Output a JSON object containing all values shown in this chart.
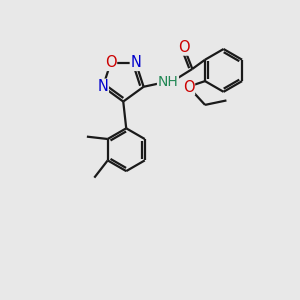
{
  "bg_color": "#e8e8e8",
  "atom_colors": {
    "C": "#000000",
    "N": "#0000cc",
    "O": "#cc0000",
    "NH": "#228855"
  },
  "bond_color": "#1a1a1a",
  "bond_lw": 1.6,
  "fs": 10.5
}
